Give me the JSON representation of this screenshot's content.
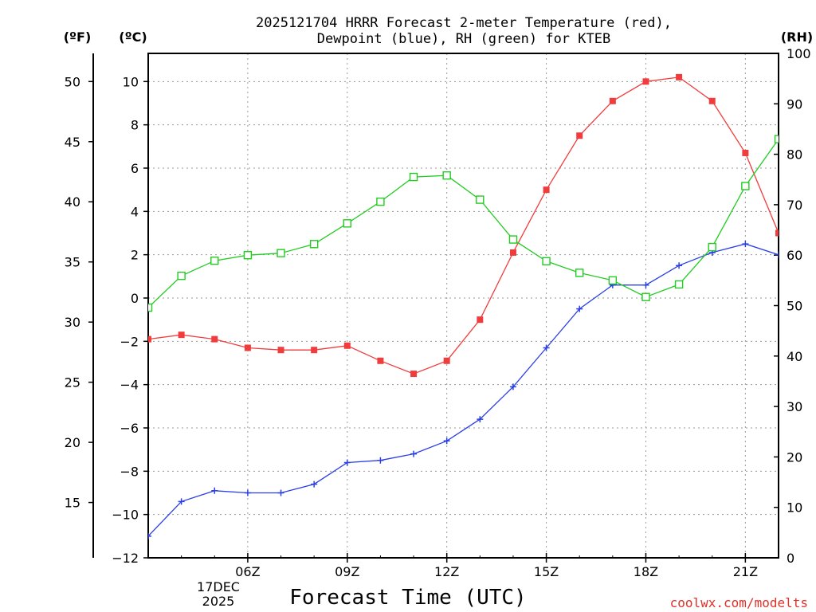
{
  "chart_data": {
    "type": "line",
    "title_line1": "2025121704 HRRR Forecast 2-meter Temperature (red),",
    "title_line2": "Dewpoint (blue), RH (green) for KTEB",
    "left_axis_unit": "(ºF)",
    "inner_axis_unit": "(ºC)",
    "right_axis_unit": "(RH)",
    "xlabel": "Forecast Time (UTC)",
    "credit": "coolwx.com/modelts",
    "date_label_line1": "17DEC",
    "date_label_line2": "2025",
    "x_range_hours": [
      3,
      22
    ],
    "x_ticks": [
      {
        "hour": 6,
        "label": "06Z"
      },
      {
        "hour": 9,
        "label": "09Z"
      },
      {
        "hour": 12,
        "label": "12Z"
      },
      {
        "hour": 15,
        "label": "15Z"
      },
      {
        "hour": 18,
        "label": "18Z"
      },
      {
        "hour": 21,
        "label": "21Z"
      }
    ],
    "c_range": [
      -12,
      11.3
    ],
    "c_ticks": [
      "10",
      "8",
      "6",
      "4",
      "2",
      "0",
      "−2",
      "−4",
      "−6",
      "−8",
      "−10",
      "−12"
    ],
    "f_ticks": [
      "50",
      "45",
      "40",
      "35",
      "30",
      "25",
      "20",
      "15"
    ],
    "rh_range": [
      0,
      100
    ],
    "rh_ticks": [
      "100",
      "90",
      "80",
      "70",
      "60",
      "50",
      "40",
      "30",
      "20",
      "10",
      "0"
    ],
    "grid": true,
    "series": [
      {
        "name": "Temperature",
        "axis": "celsius",
        "color": "#f03c3c",
        "marker": "filled-square",
        "x": [
          3,
          4,
          5,
          6,
          7,
          8,
          9,
          10,
          11,
          12,
          13,
          14,
          15,
          16,
          17,
          18,
          19,
          20,
          21,
          22
        ],
        "values": [
          -1.9,
          -1.7,
          -1.9,
          -2.3,
          -2.4,
          -2.4,
          -2.2,
          -2.9,
          -3.5,
          -2.9,
          -1.0,
          2.1,
          5.0,
          7.5,
          9.1,
          10.0,
          10.2,
          9.1,
          6.7,
          3.0
        ]
      },
      {
        "name": "Dewpoint",
        "axis": "celsius",
        "color": "#2a3fe6",
        "marker": "plus",
        "x": [
          3,
          4,
          5,
          6,
          7,
          8,
          9,
          10,
          11,
          12,
          13,
          14,
          15,
          16,
          17,
          18,
          19,
          20,
          21,
          22
        ],
        "values": [
          -11.0,
          -9.4,
          -8.9,
          -9.0,
          -9.0,
          -8.6,
          -7.6,
          -7.5,
          -7.2,
          -6.6,
          -5.6,
          -4.1,
          -2.3,
          -0.5,
          0.6,
          0.6,
          1.5,
          2.1,
          2.5,
          2.0
        ]
      },
      {
        "name": "RH",
        "axis": "rh",
        "color": "#22cc22",
        "marker": "open-square",
        "x": [
          3,
          4,
          5,
          6,
          7,
          8,
          9,
          10,
          11,
          12,
          13,
          14,
          15,
          16,
          17,
          18,
          19,
          20,
          21,
          22
        ],
        "values": [
          49.6,
          55.9,
          58.9,
          60.0,
          60.4,
          62.2,
          66.3,
          70.6,
          75.5,
          75.8,
          71.0,
          63.1,
          58.8,
          56.5,
          55.0,
          51.7,
          54.2,
          61.6,
          73.7,
          83.0
        ]
      }
    ]
  }
}
